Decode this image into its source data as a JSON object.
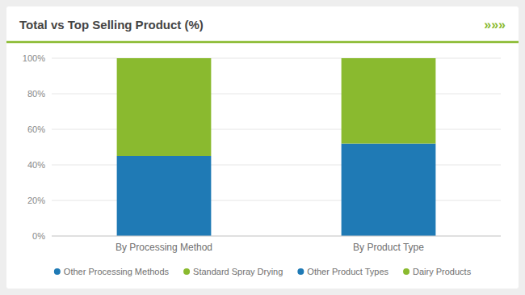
{
  "chart_data": {
    "type": "bar",
    "title": "Total vs Top Selling Product (%)",
    "annotations": [
      "»»»"
    ],
    "categories": [
      "By Processing Method",
      "By Product Type"
    ],
    "series": [
      {
        "name": "Other Processing Methods",
        "color": "#1f7ab5",
        "values": [
          45,
          null
        ]
      },
      {
        "name": "Standard Spray Drying",
        "color": "#8aba2f",
        "values": [
          55,
          null
        ]
      },
      {
        "name": "Other Product Types",
        "color": "#1f7ab5",
        "values": [
          null,
          52
        ]
      },
      {
        "name": "Dairy Products",
        "color": "#8aba2f",
        "values": [
          null,
          48
        ]
      }
    ],
    "stacked": true,
    "ylim": [
      0,
      100
    ],
    "yticks": [
      {
        "value": 0,
        "label": "0%"
      },
      {
        "value": 20,
        "label": "20%"
      },
      {
        "value": 40,
        "label": "40%"
      },
      {
        "value": 60,
        "label": "60%"
      },
      {
        "value": 80,
        "label": "80%"
      },
      {
        "value": 100,
        "label": "100%"
      }
    ],
    "grid": true,
    "legend": "bottom"
  }
}
